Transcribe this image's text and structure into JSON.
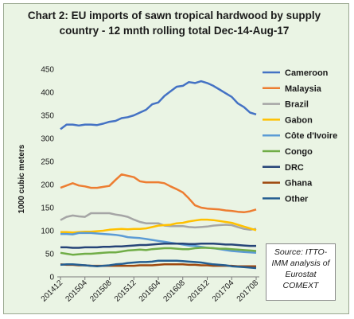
{
  "chart_data": {
    "type": "line",
    "title": "Chart 2: EU imports of sawn tropical hardwood by supply country - 12 mnth rolling total Dec-14-Aug-17",
    "ylabel": "1000 cubic meters",
    "xlabel": "",
    "ylim": [
      0,
      450
    ],
    "yticks": [
      0,
      50,
      100,
      150,
      200,
      250,
      300,
      350,
      400,
      450
    ],
    "grid": false,
    "legend_position": "right",
    "x": [
      "201412",
      "201501",
      "201502",
      "201503",
      "201504",
      "201505",
      "201506",
      "201507",
      "201508",
      "201509",
      "201510",
      "201511",
      "201512",
      "201601",
      "201602",
      "201603",
      "201604",
      "201605",
      "201606",
      "201607",
      "201608",
      "201609",
      "201610",
      "201611",
      "201612",
      "201701",
      "201702",
      "201703",
      "201704",
      "201705",
      "201706",
      "201707",
      "201708"
    ],
    "xticks": [
      "201412",
      "201504",
      "201508",
      "201512",
      "201604",
      "201608",
      "201612",
      "201704",
      "201708"
    ],
    "series": [
      {
        "name": "Cameroon",
        "color": "#4472c4",
        "values": [
          320,
          330,
          330,
          328,
          330,
          330,
          329,
          332,
          336,
          338,
          344,
          346,
          350,
          356,
          362,
          374,
          378,
          392,
          402,
          412,
          414,
          422,
          420,
          424,
          420,
          414,
          406,
          398,
          390,
          376,
          368,
          356,
          352
        ]
      },
      {
        "name": "Malaysia",
        "color": "#ed7d31",
        "values": [
          193,
          198,
          203,
          198,
          196,
          193,
          193,
          195,
          197,
          210,
          222,
          219,
          216,
          207,
          205,
          205,
          205,
          203,
          196,
          190,
          183,
          170,
          155,
          150,
          148,
          147,
          146,
          144,
          143,
          141,
          140,
          142,
          146
        ]
      },
      {
        "name": "Brazil",
        "color": "#a5a5a5",
        "values": [
          123,
          130,
          133,
          131,
          130,
          138,
          138,
          138,
          138,
          135,
          133,
          130,
          124,
          119,
          116,
          116,
          116,
          111,
          110,
          110,
          110,
          108,
          107,
          108,
          109,
          111,
          112,
          113,
          112,
          108,
          104,
          102,
          104
        ]
      },
      {
        "name": "Gabon",
        "color": "#ffc000",
        "values": [
          97,
          97,
          96,
          97,
          98,
          98,
          99,
          100,
          102,
          103,
          104,
          103,
          104,
          104,
          105,
          108,
          111,
          112,
          113,
          116,
          117,
          120,
          122,
          124,
          124,
          123,
          121,
          119,
          117,
          113,
          109,
          105,
          101
        ]
      },
      {
        "name": "Côte d'Ivoire",
        "color": "#5b9bd5",
        "values": [
          93,
          93,
          92,
          95,
          95,
          95,
          94,
          93,
          92,
          91,
          89,
          86,
          85,
          84,
          82,
          80,
          78,
          76,
          74,
          72,
          70,
          68,
          67,
          65,
          63,
          62,
          60,
          58,
          56,
          55,
          54,
          53,
          52
        ]
      },
      {
        "name": "Congo",
        "color": "#70ad47",
        "values": [
          52,
          50,
          48,
          49,
          50,
          50,
          51,
          52,
          53,
          53,
          55,
          57,
          58,
          59,
          58,
          60,
          61,
          62,
          62,
          61,
          60,
          60,
          62,
          63,
          63,
          62,
          61,
          61,
          60,
          59,
          58,
          57,
          56
        ]
      },
      {
        "name": "DRC",
        "color": "#264478",
        "values": [
          64,
          64,
          63,
          63,
          64,
          64,
          64,
          65,
          65,
          66,
          66,
          67,
          68,
          69,
          69,
          70,
          71,
          72,
          72,
          72,
          72,
          71,
          71,
          72,
          72,
          72,
          71,
          70,
          70,
          69,
          68,
          67,
          67
        ]
      },
      {
        "name": "Ghana",
        "color": "#9e480e",
        "values": [
          27,
          26,
          26,
          25,
          25,
          24,
          24,
          24,
          24,
          24,
          24,
          24,
          24,
          25,
          25,
          25,
          26,
          27,
          27,
          27,
          27,
          26,
          26,
          25,
          25,
          24,
          24,
          24,
          24,
          23,
          23,
          23,
          23
        ]
      },
      {
        "name": "Other",
        "color": "#255e91",
        "values": [
          26,
          27,
          27,
          26,
          25,
          24,
          23,
          24,
          25,
          27,
          28,
          30,
          31,
          32,
          32,
          33,
          35,
          35,
          35,
          35,
          34,
          33,
          32,
          31,
          29,
          27,
          26,
          25,
          23,
          22,
          21,
          20,
          19
        ]
      }
    ]
  },
  "source_note": "Source: ITTO-IMM analysis of Eurostat COMEXT"
}
